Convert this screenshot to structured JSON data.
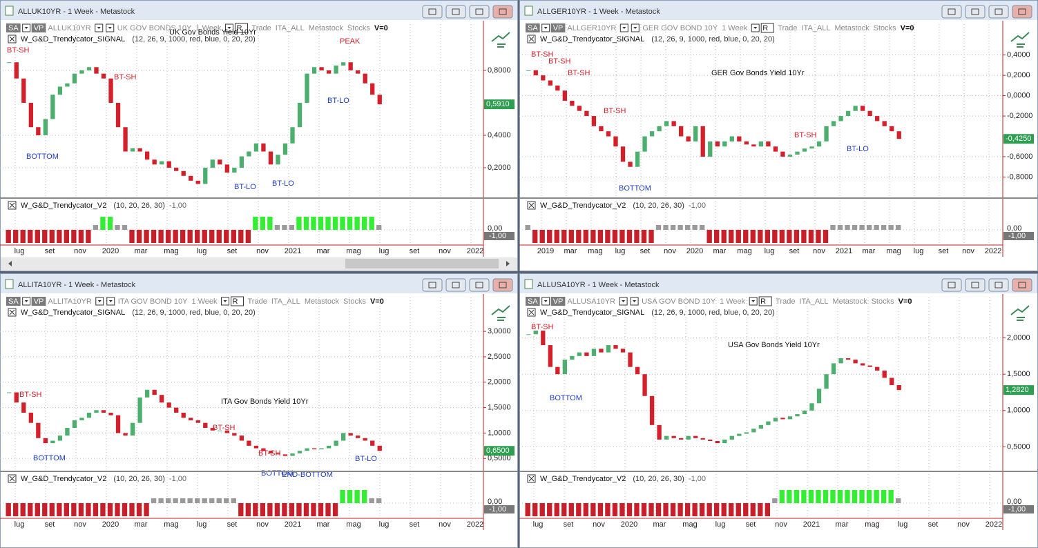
{
  "style": {
    "up_color": "#4caf6e",
    "down_color": "#d3202a",
    "signal_up": "#33ee33",
    "signal_flat": "#9a9a9a",
    "signal_down": "#c8202a",
    "value_box": "#2e9e50",
    "signal_box": "#777777"
  },
  "windows": [
    {
      "title": "ALLUK10YR - 1 Week - Metastock",
      "toolbar": [
        "SA",
        "VP",
        "ALLUK10YR",
        "UK GOV BONDS 10Y",
        "1 Week",
        "R",
        "Trade",
        "ITA_ALL",
        "Metastock",
        "Stocks",
        "V=0"
      ],
      "overlay_title": "UK Gov Bonds Yield 10Yr",
      "indicator1": "W_G&D_Trendycator_SIGNAL",
      "indicator1_params": "(12, 26, 9, 1000, red, blue, 0, 20, 20)",
      "indicator2": "W_G&D_Trendycator_V2",
      "indicator2_params": "(10, 20, 26, 30)",
      "ylim": [
        0.03,
        0.97
      ],
      "yticks": [
        {
          "value": 0.2,
          "label": "0,2000"
        },
        {
          "value": 0.4,
          "label": "0,4000"
        },
        {
          "value": 0.8,
          "label": "0,8000"
        }
      ],
      "closes": [
        0.85,
        0.75,
        0.6,
        0.45,
        0.4,
        0.5,
        0.65,
        0.7,
        0.72,
        0.78,
        0.8,
        0.82,
        0.78,
        0.75,
        0.6,
        0.45,
        0.3,
        0.32,
        0.3,
        0.25,
        0.22,
        0.24,
        0.2,
        0.18,
        0.15,
        0.12,
        0.1,
        0.2,
        0.25,
        0.22,
        0.17,
        0.2,
        0.27,
        0.3,
        0.35,
        0.3,
        0.22,
        0.28,
        0.35,
        0.45,
        0.6,
        0.78,
        0.82,
        0.8,
        0.78,
        0.83,
        0.85,
        0.8,
        0.78,
        0.72,
        0.65,
        0.591
      ],
      "last_value": {
        "value": 0.591,
        "label": "0,5910"
      },
      "annotations": [
        {
          "text": "BT-SH",
          "color": "#d0202a"
        },
        {
          "text": "BT-SH",
          "color": "#d0202a"
        },
        {
          "text": "BOTTOM",
          "color": "#1f3fbf"
        },
        {
          "text": "PEAK",
          "color": "#d0202a"
        },
        {
          "text": "BT-LO",
          "color": "#1f3fbf"
        },
        {
          "text": "BT-LO",
          "color": "#1f3fbf"
        },
        {
          "text": "BT-LO",
          "color": "#1f3fbf"
        }
      ],
      "signal": [
        {
          "value": -1,
          "bars": 12
        },
        {
          "value": 0,
          "bars": 1
        },
        {
          "value": 1,
          "bars": 2
        },
        {
          "value": 0,
          "bars": 2
        },
        {
          "value": -1,
          "bars": 17
        },
        {
          "value": 1,
          "bars": 3
        },
        {
          "value": 0,
          "bars": 3
        },
        {
          "value": 1,
          "bars": 11
        },
        {
          "value": 0,
          "bars": 1
        }
      ],
      "signal_last": {
        "value": -1,
        "label": "-1,00"
      },
      "y2ticks": [
        {
          "value": 0,
          "label": "0,00"
        }
      ],
      "months": [
        "lug",
        "set",
        "nov",
        "2020",
        "mar",
        "mag",
        "lug",
        "set",
        "nov",
        "2021",
        "mar",
        "mag",
        "lug",
        "set",
        "nov",
        "2022"
      ]
    },
    {
      "title": "ALLGER10YR - 1 Week - Metastock",
      "toolbar": [
        "SA",
        "VP",
        "ALLGER10YR",
        "GER GOV BOND 10Y",
        "1 Week",
        "R",
        "Trade",
        "ITA_ALL",
        "Metastock",
        "Stocks",
        "V=0"
      ],
      "overlay_title": "GER Gov Bonds Yield 10Yr",
      "indicator1": "W_G&D_Trendycator_SIGNAL",
      "indicator1_params": "(12, 26, 9, 1000, red, blue, 0, 20, 20)",
      "indicator2": "W_G&D_Trendycator_V2",
      "indicator2_params": "(10, 20, 26, 30)",
      "ylim": [
        -0.98,
        0.52
      ],
      "yticks": [
        {
          "value": 0.4,
          "label": "0,4000"
        },
        {
          "value": 0.2,
          "label": "0,2000"
        },
        {
          "value": 0,
          "label": "0,0000"
        },
        {
          "value": -0.2,
          "label": "-0,2000"
        },
        {
          "value": -0.6,
          "label": "-0,6000"
        },
        {
          "value": -0.8,
          "label": "-0,8000"
        }
      ],
      "closes": [
        0.25,
        0.2,
        0.15,
        0.1,
        0.05,
        -0.05,
        -0.1,
        -0.15,
        -0.2,
        -0.3,
        -0.35,
        -0.4,
        -0.5,
        -0.65,
        -0.7,
        -0.55,
        -0.4,
        -0.35,
        -0.3,
        -0.25,
        -0.3,
        -0.4,
        -0.45,
        -0.3,
        -0.6,
        -0.45,
        -0.5,
        -0.45,
        -0.4,
        -0.45,
        -0.48,
        -0.5,
        -0.45,
        -0.5,
        -0.55,
        -0.6,
        -0.58,
        -0.55,
        -0.52,
        -0.5,
        -0.45,
        -0.3,
        -0.25,
        -0.2,
        -0.15,
        -0.1,
        -0.15,
        -0.2,
        -0.25,
        -0.3,
        -0.35,
        -0.425
      ],
      "last_value": {
        "value": -0.425,
        "label": "-0,4250"
      },
      "annotations": [
        {
          "text": "BT-SH",
          "color": "#d0202a"
        },
        {
          "text": "BT-SH",
          "color": "#d0202a"
        },
        {
          "text": "BT-SH",
          "color": "#d0202a"
        },
        {
          "text": "BT-SH",
          "color": "#d0202a"
        },
        {
          "text": "BOTTOM",
          "color": "#1f3fbf"
        },
        {
          "text": "BT-SH",
          "color": "#d0202a"
        },
        {
          "text": "BT-LO",
          "color": "#1f3fbf"
        }
      ],
      "signal": [
        {
          "value": 0,
          "bars": 1
        },
        {
          "value": -1,
          "bars": 17
        },
        {
          "value": 0,
          "bars": 7
        },
        {
          "value": -1,
          "bars": 17
        },
        {
          "value": 0,
          "bars": 10
        }
      ],
      "signal_last": {
        "value": -1,
        "label": "-1,00"
      },
      "y2ticks": [
        {
          "value": 0,
          "label": "0,00"
        }
      ],
      "months": [
        "2019",
        "mar",
        "mag",
        "lug",
        "set",
        "nov",
        "2020",
        "mar",
        "mag",
        "lug",
        "set",
        "nov",
        "2021",
        "mar",
        "mag",
        "lug",
        "set",
        "nov",
        "2022"
      ]
    },
    {
      "title": "ALLITA10YR - 1 Week - Metastock",
      "toolbar": [
        "SA",
        "VP",
        "ALLITA10YR",
        "ITA GOV BOND 10Y",
        "1 Week",
        "R",
        "Trade",
        "ITA_ALL",
        "Metastock",
        "Stocks",
        "V=0"
      ],
      "overlay_title": "ITA Gov Bonds Yield 10Yr",
      "indicator1": "W_G&D_Trendycator_SIGNAL",
      "indicator1_params": "(12, 26, 9, 1000, red, blue, 0, 20, 20)",
      "indicator2": "W_G&D_Trendycator_V2",
      "indicator2_params": "(10, 20, 26, 30)",
      "ylim": [
        0.3,
        3.3
      ],
      "yticks": [
        {
          "value": 0.5,
          "label": "0,5000"
        },
        {
          "value": 1,
          "label": "1,0000"
        },
        {
          "value": 1.5,
          "label": "1,5000"
        },
        {
          "value": 2,
          "label": "2,0000"
        },
        {
          "value": 2.5,
          "label": "2,5000"
        },
        {
          "value": 3,
          "label": "3,0000"
        }
      ],
      "closes": [
        1.8,
        1.6,
        1.4,
        1.2,
        0.9,
        0.8,
        0.85,
        0.95,
        1.1,
        1.25,
        1.3,
        1.4,
        1.45,
        1.4,
        1.35,
        1.0,
        0.95,
        1.2,
        1.7,
        1.85,
        1.75,
        1.6,
        1.5,
        1.4,
        1.3,
        1.25,
        1.2,
        1.1,
        1.05,
        1.05,
        1.0,
        0.95,
        0.85,
        0.75,
        0.7,
        0.65,
        0.6,
        0.58,
        0.55,
        0.6,
        0.65,
        0.7,
        0.68,
        0.7,
        0.75,
        0.85,
        1.0,
        0.95,
        0.9,
        0.85,
        0.75,
        0.65
      ],
      "last_value": {
        "value": 0.65,
        "label": "0,6500"
      },
      "annotations": [
        {
          "text": "BT-SH",
          "color": "#d0202a"
        },
        {
          "text": "BOTTOM",
          "color": "#1f3fbf"
        },
        {
          "text": "BT-SH",
          "color": "#d0202a"
        },
        {
          "text": "BT-SH",
          "color": "#d0202a"
        },
        {
          "text": "BOTTOM",
          "color": "#1f3fbf"
        },
        {
          "text": "END-BOTTOM",
          "color": "#1f3fbf"
        },
        {
          "text": "BT-LO",
          "color": "#1f3fbf"
        }
      ],
      "signal": [
        {
          "value": -1,
          "bars": 20
        },
        {
          "value": 0,
          "bars": 12
        },
        {
          "value": -1,
          "bars": 14
        },
        {
          "value": 1,
          "bars": 4
        },
        {
          "value": 0,
          "bars": 2
        }
      ],
      "signal_last": {
        "value": -1,
        "label": "-1,00"
      },
      "y2ticks": [
        {
          "value": 0,
          "label": "0,00"
        }
      ],
      "months": [
        "lug",
        "set",
        "nov",
        "2020",
        "mar",
        "mag",
        "lug",
        "set",
        "nov",
        "2021",
        "mar",
        "mag",
        "lug",
        "set",
        "nov",
        "2022"
      ]
    },
    {
      "title": "ALLUSA10YR - 1 Week - Metastock",
      "toolbar": [
        "SA",
        "VP",
        "ALLUSA10YR",
        "USA GOV BOND 10Y",
        "1 Week",
        "R",
        "Trade",
        "ITA_ALL",
        "Metastock",
        "Stocks",
        "V=0"
      ],
      "overlay_title": "USA Gov Bonds Yield 10Yr",
      "indicator1": "W_G&D_Trendycator_SIGNAL",
      "indicator1_params": "(12, 26, 9, 1000, red, blue, 0, 20, 20)",
      "indicator2": "W_G&D_Trendycator_V2",
      "indicator2_params": "(10, 20, 26, 30)",
      "ylim": [
        0.2,
        2.3
      ],
      "yticks": [
        {
          "value": 0.5,
          "label": "0,5000"
        },
        {
          "value": 1,
          "label": "1,0000"
        },
        {
          "value": 1.5,
          "label": "1,5000"
        },
        {
          "value": 2,
          "label": "2,0000"
        }
      ],
      "closes": [
        2.05,
        2.1,
        1.9,
        1.6,
        1.5,
        1.7,
        1.75,
        1.8,
        1.75,
        1.85,
        1.8,
        1.9,
        1.85,
        1.8,
        1.6,
        1.5,
        1.2,
        0.8,
        0.6,
        0.65,
        0.62,
        0.6,
        0.65,
        0.62,
        0.6,
        0.58,
        0.55,
        0.6,
        0.65,
        0.68,
        0.7,
        0.75,
        0.8,
        0.85,
        0.9,
        0.88,
        0.92,
        0.95,
        1.0,
        1.1,
        1.3,
        1.5,
        1.65,
        1.72,
        1.7,
        1.65,
        1.62,
        1.6,
        1.55,
        1.45,
        1.35,
        1.282
      ],
      "last_value": {
        "value": 1.282,
        "label": "1,2820"
      },
      "annotations": [
        {
          "text": "BT-SH",
          "color": "#d0202a"
        },
        {
          "text": "BOTTOM",
          "color": "#1f3fbf"
        }
      ],
      "signal": [
        {
          "value": -1,
          "bars": 34
        },
        {
          "value": 0,
          "bars": 1
        },
        {
          "value": 1,
          "bars": 16
        },
        {
          "value": 0,
          "bars": 1
        }
      ],
      "signal_last": {
        "value": -1,
        "label": "-1,00"
      },
      "y2ticks": [
        {
          "value": 0,
          "label": "0,00"
        }
      ],
      "months": [
        "lug",
        "set",
        "nov",
        "2020",
        "mar",
        "mag",
        "lug",
        "set",
        "nov",
        "2021",
        "mar",
        "mag",
        "lug",
        "set",
        "nov",
        "2022"
      ]
    }
  ]
}
